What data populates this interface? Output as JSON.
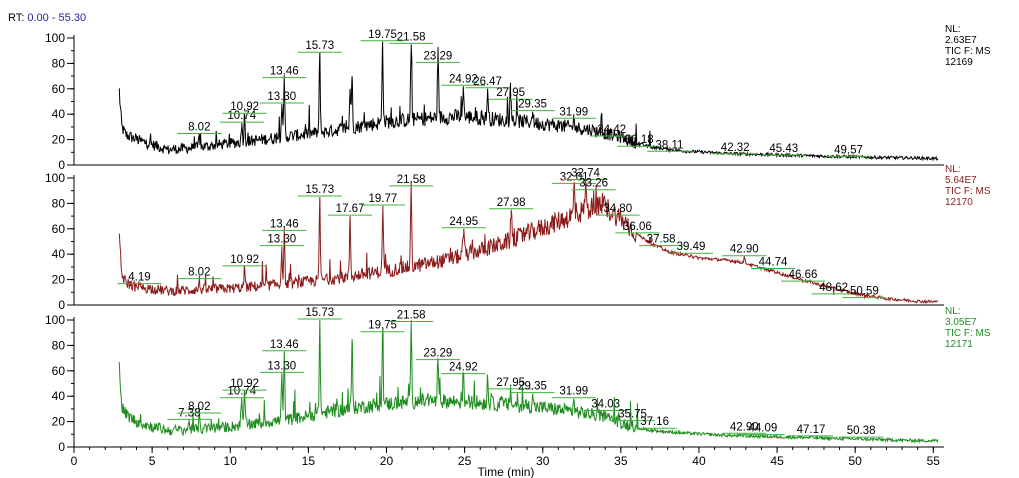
{
  "header": {
    "rt_prefix": "RT:",
    "rt_range": "0.00 - 55.30"
  },
  "chart_data": {
    "type": "line",
    "x_axis": {
      "label": "Time (min)",
      "range": [
        0,
        55.3
      ],
      "major_ticks": [
        0,
        5,
        10,
        15,
        20,
        25,
        30,
        35,
        40,
        45,
        50,
        55
      ],
      "tick_labels": [
        "0",
        "5",
        "10",
        "15",
        "20",
        "25",
        "30",
        "35",
        "40",
        "45",
        "50",
        "55"
      ],
      "minor_step": 1
    },
    "y_axis": {
      "range": [
        0,
        100
      ],
      "ticks": [
        0,
        20,
        40,
        60,
        80,
        100
      ],
      "tick_labels": [
        "0",
        "20",
        "40",
        "60",
        "80",
        "100"
      ],
      "minor_step": 10
    },
    "grid": false,
    "panels": [
      {
        "sample": "12169",
        "color": "#000000",
        "info_lines": [
          "NL:",
          "2.63E7",
          "TIC F:  MS",
          "12169"
        ],
        "baseline": [
          [
            2.9,
            58
          ],
          [
            3.05,
            30
          ],
          [
            3.3,
            24
          ],
          [
            4,
            20
          ],
          [
            5,
            16
          ],
          [
            6,
            12
          ],
          [
            8,
            14
          ],
          [
            10,
            17
          ],
          [
            12,
            20
          ],
          [
            14,
            23
          ],
          [
            16,
            26
          ],
          [
            18,
            30
          ],
          [
            20,
            34
          ],
          [
            22,
            36
          ],
          [
            24,
            38
          ],
          [
            25,
            38
          ],
          [
            27,
            36
          ],
          [
            29,
            34
          ],
          [
            31,
            31
          ],
          [
            33,
            28
          ],
          [
            35,
            22
          ],
          [
            36,
            17
          ],
          [
            37,
            14
          ],
          [
            39,
            11
          ],
          [
            42,
            9
          ],
          [
            45,
            8
          ],
          [
            48,
            7
          ],
          [
            51,
            6
          ],
          [
            54,
            5.5
          ],
          [
            55.3,
            5
          ]
        ],
        "peaks": [
          {
            "rt": 8.02,
            "height": 24,
            "label": "8.02"
          },
          {
            "rt": 10.74,
            "height": 33,
            "label": "10.74"
          },
          {
            "rt": 10.92,
            "height": 40,
            "label": "10.92"
          },
          {
            "rt": 13.3,
            "height": 48,
            "label": "13.30"
          },
          {
            "rt": 13.46,
            "height": 68,
            "label": "13.46"
          },
          {
            "rt": 15.73,
            "height": 88,
            "label": "15.73"
          },
          {
            "rt": 17.67,
            "height": 60,
            "label": ""
          },
          {
            "rt": 17.8,
            "height": 70,
            "label": ""
          },
          {
            "rt": 19.75,
            "height": 97,
            "label": "19.75"
          },
          {
            "rt": 21.58,
            "height": 95,
            "label": "21.58"
          },
          {
            "rt": 23.29,
            "height": 80,
            "label": "23.29"
          },
          {
            "rt": 24.92,
            "height": 62,
            "label": "24.92"
          },
          {
            "rt": 26.47,
            "height": 60,
            "label": "26.47"
          },
          {
            "rt": 27.95,
            "height": 51,
            "label": "27.95"
          },
          {
            "rt": 29.35,
            "height": 42,
            "label": "29.35"
          },
          {
            "rt": 31.99,
            "height": 36,
            "label": "31.99"
          },
          {
            "rt": 34.42,
            "height": 22,
            "label": "34.42"
          },
          {
            "rt": 36.18,
            "height": 14,
            "label": "36.18"
          },
          {
            "rt": 38.11,
            "height": 10,
            "label": "38.11"
          },
          {
            "rt": 42.32,
            "height": 8,
            "label": "42.32"
          },
          {
            "rt": 45.43,
            "height": 7,
            "label": "45.43"
          },
          {
            "rt": 49.57,
            "height": 6,
            "label": "49.57"
          }
        ]
      },
      {
        "sample": "12170",
        "color": "#8b1a1a",
        "info_lines": [
          "NL:",
          "5.64E7",
          "TIC F:  MS",
          "12170"
        ],
        "baseline": [
          [
            2.9,
            50
          ],
          [
            3.05,
            24
          ],
          [
            3.3,
            18
          ],
          [
            4,
            14
          ],
          [
            5,
            13
          ],
          [
            6,
            11
          ],
          [
            8,
            12
          ],
          [
            10,
            13
          ],
          [
            12,
            15
          ],
          [
            14,
            17
          ],
          [
            16,
            20
          ],
          [
            18,
            23
          ],
          [
            20,
            27
          ],
          [
            22,
            31
          ],
          [
            24,
            36
          ],
          [
            26,
            43
          ],
          [
            28,
            51
          ],
          [
            30,
            61
          ],
          [
            32,
            71
          ],
          [
            33,
            76
          ],
          [
            34,
            77
          ],
          [
            35,
            68
          ],
          [
            36,
            56
          ],
          [
            37,
            48
          ],
          [
            38,
            42
          ],
          [
            40,
            37
          ],
          [
            42,
            35
          ],
          [
            43,
            33
          ],
          [
            44,
            29
          ],
          [
            46,
            22
          ],
          [
            48,
            15
          ],
          [
            50,
            9
          ],
          [
            52,
            5
          ],
          [
            54,
            3
          ],
          [
            55.3,
            2.5
          ]
        ],
        "peaks": [
          {
            "rt": 4.19,
            "height": 16,
            "label": "4.19"
          },
          {
            "rt": 8.02,
            "height": 20,
            "label": "8.02"
          },
          {
            "rt": 10.92,
            "height": 30,
            "label": "10.92"
          },
          {
            "rt": 13.3,
            "height": 46,
            "label": "13.30"
          },
          {
            "rt": 13.46,
            "height": 58,
            "label": "13.46"
          },
          {
            "rt": 15.73,
            "height": 85,
            "label": "15.73"
          },
          {
            "rt": 17.67,
            "height": 70,
            "label": "17.67"
          },
          {
            "rt": 19.77,
            "height": 78,
            "label": "19.77"
          },
          {
            "rt": 21.58,
            "height": 93,
            "label": "21.58"
          },
          {
            "rt": 24.95,
            "height": 60,
            "label": "24.95"
          },
          {
            "rt": 27.98,
            "height": 75,
            "label": "27.98"
          },
          {
            "rt": 32.01,
            "height": 95,
            "label": "32.01"
          },
          {
            "rt": 32.74,
            "height": 98,
            "label": "32.74"
          },
          {
            "rt": 33.26,
            "height": 90,
            "label": "33.26"
          },
          {
            "rt": 34.8,
            "height": 70,
            "label": "34.80"
          },
          {
            "rt": 36.06,
            "height": 56,
            "label": "36.06"
          },
          {
            "rt": 37.58,
            "height": 46,
            "label": "37.58"
          },
          {
            "rt": 39.49,
            "height": 40,
            "label": "39.49"
          },
          {
            "rt": 42.9,
            "height": 38,
            "label": "42.90"
          },
          {
            "rt": 44.74,
            "height": 28,
            "label": "44.74"
          },
          {
            "rt": 46.66,
            "height": 18,
            "label": "46.66"
          },
          {
            "rt": 48.62,
            "height": 8,
            "label": "48.62"
          },
          {
            "rt": 50.59,
            "height": 5,
            "label": "50.59"
          }
        ]
      },
      {
        "sample": "12171",
        "color": "#1e8c1e",
        "info_lines": [
          "NL:",
          "3.05E7",
          "TIC F:  MS",
          "12171"
        ],
        "baseline": [
          [
            2.9,
            72
          ],
          [
            3.05,
            32
          ],
          [
            3.3,
            26
          ],
          [
            4,
            20
          ],
          [
            5,
            16
          ],
          [
            6,
            13
          ],
          [
            8,
            14
          ],
          [
            10,
            16
          ],
          [
            12,
            19
          ],
          [
            14,
            22
          ],
          [
            16,
            27
          ],
          [
            18,
            31
          ],
          [
            20,
            34
          ],
          [
            22,
            36
          ],
          [
            24,
            36
          ],
          [
            26,
            35
          ],
          [
            28,
            33
          ],
          [
            30,
            31
          ],
          [
            32,
            28
          ],
          [
            34,
            24
          ],
          [
            35,
            19
          ],
          [
            36,
            15
          ],
          [
            37,
            13
          ],
          [
            39,
            11
          ],
          [
            42,
            9
          ],
          [
            45,
            8
          ],
          [
            48,
            7
          ],
          [
            51,
            6
          ],
          [
            54,
            5
          ],
          [
            55.3,
            5
          ]
        ],
        "peaks": [
          {
            "rt": 7.38,
            "height": 21,
            "label": "7.38"
          },
          {
            "rt": 8.02,
            "height": 26,
            "label": "8.02"
          },
          {
            "rt": 10.74,
            "height": 38,
            "label": "10.74"
          },
          {
            "rt": 10.92,
            "height": 44,
            "label": "10.92"
          },
          {
            "rt": 13.3,
            "height": 58,
            "label": "13.30"
          },
          {
            "rt": 13.46,
            "height": 75,
            "label": "13.46"
          },
          {
            "rt": 15.73,
            "height": 100,
            "label": "15.73"
          },
          {
            "rt": 17.8,
            "height": 85,
            "label": ""
          },
          {
            "rt": 19.75,
            "height": 90,
            "label": "19.75"
          },
          {
            "rt": 21.58,
            "height": 98,
            "label": "21.58"
          },
          {
            "rt": 23.29,
            "height": 68,
            "label": "23.29"
          },
          {
            "rt": 24.92,
            "height": 57,
            "label": "24.92"
          },
          {
            "rt": 26.47,
            "height": 55,
            "label": ""
          },
          {
            "rt": 27.95,
            "height": 45,
            "label": "27.95"
          },
          {
            "rt": 29.35,
            "height": 42,
            "label": "29.35"
          },
          {
            "rt": 31.99,
            "height": 38,
            "label": "31.99"
          },
          {
            "rt": 34.03,
            "height": 28,
            "label": "34.03"
          },
          {
            "rt": 35.75,
            "height": 20,
            "label": "35.75"
          },
          {
            "rt": 37.16,
            "height": 14,
            "label": "37.16"
          },
          {
            "rt": 42.9,
            "height": 10,
            "label": "42.90"
          },
          {
            "rt": 44.09,
            "height": 9,
            "label": "44.09"
          },
          {
            "rt": 47.17,
            "height": 8,
            "label": "47.17"
          },
          {
            "rt": 50.38,
            "height": 7,
            "label": "50.38"
          }
        ]
      }
    ]
  }
}
